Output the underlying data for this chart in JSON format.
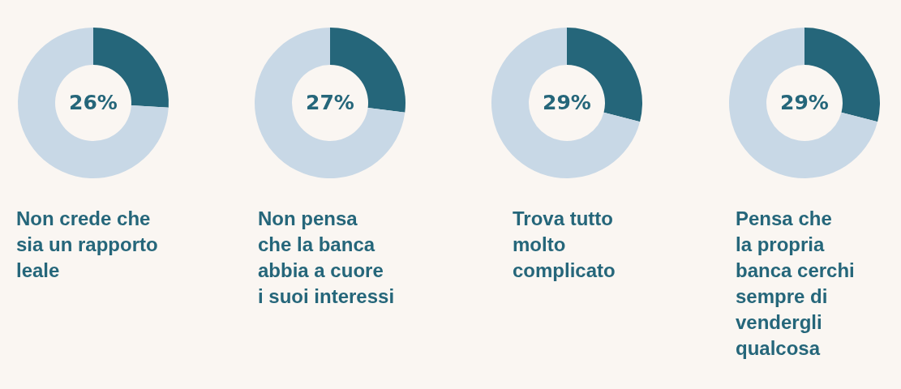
{
  "chart_data": [
    {
      "type": "donut",
      "title": "Non crede che\nsia un rapporto\nleale",
      "categories": [
        null,
        null
      ],
      "values": [
        26,
        74
      ],
      "colors": [
        "#25667a",
        "#c8d8e6"
      ],
      "annotations": [
        "26%"
      ]
    },
    {
      "type": "donut",
      "title": "Non pensa\nche la banca\nabbia a cuore\ni suoi interessi",
      "categories": [
        null,
        null
      ],
      "values": [
        27,
        73
      ],
      "colors": [
        "#25667a",
        "#c8d8e6"
      ],
      "annotations": [
        "27%"
      ]
    },
    {
      "type": "donut",
      "title": "Trova tutto\nmolto\ncomplicato",
      "categories": [
        null,
        null
      ],
      "values": [
        29,
        71
      ],
      "colors": [
        "#25667a",
        "#c8d8e6"
      ],
      "annotations": [
        "29%"
      ]
    },
    {
      "type": "donut",
      "title": "Pensa che\nla propria\nbanca cerchi\nsempre di\nvendergli\nqualcosa",
      "categories": [
        null,
        null
      ],
      "values": [
        29,
        71
      ],
      "colors": [
        "#25667a",
        "#c8d8e6"
      ],
      "annotations": [
        "29%"
      ]
    }
  ]
}
